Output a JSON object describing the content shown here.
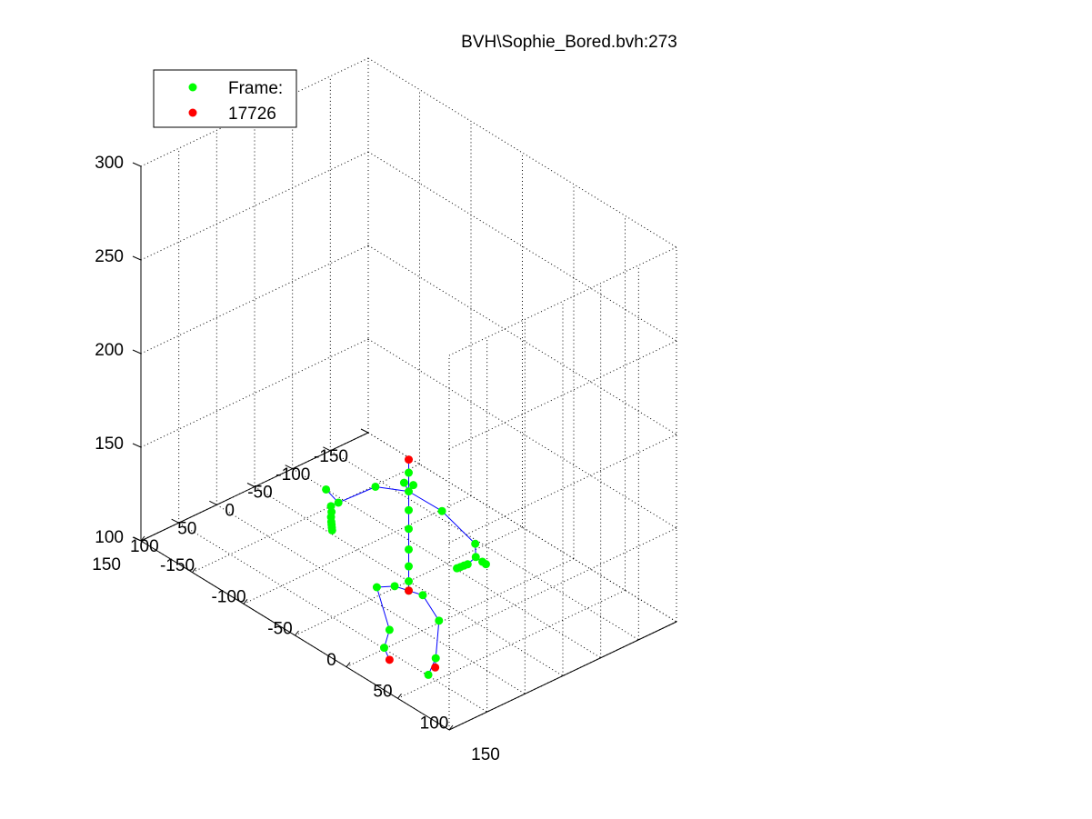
{
  "chart_data": {
    "type": "scatter",
    "subtype": "3d-skeleton",
    "title": "BVH\\Sophie_Bored.bvh:273",
    "xlabel": "",
    "ylabel": "",
    "zlabel": "",
    "xlim": [
      -150,
      150
    ],
    "ylim": [
      -150,
      150
    ],
    "zlim": [
      100,
      300
    ],
    "x_ticks": [
      -150,
      -100,
      -50,
      0,
      50,
      100,
      150
    ],
    "y_ticks": [
      -150,
      -100,
      -50,
      0,
      50,
      100,
      150
    ],
    "z_ticks": [
      100,
      150,
      200,
      250,
      300
    ],
    "grid": true,
    "legend": {
      "position": "top-left",
      "entries": [
        {
          "label": "Frame:",
          "color": "#00ff00"
        },
        {
          "label": "17726",
          "color": "#ff0000"
        }
      ]
    },
    "colors": {
      "joint": "#00ff00",
      "end_site": "#ff0000",
      "bone": "#0000ff"
    },
    "joints": [
      {
        "id": 0,
        "x": 0,
        "y": 0,
        "z": 95
      },
      {
        "id": 1,
        "x": -10,
        "y": 5,
        "z": 95
      },
      {
        "id": 2,
        "x": -20,
        "y": 15,
        "z": 93
      },
      {
        "id": 3,
        "x": -15,
        "y": 5,
        "z": 70
      },
      {
        "id": 4,
        "x": -18,
        "y": 8,
        "z": 60
      },
      {
        "id": 5,
        "x": 10,
        "y": -5,
        "z": 95
      },
      {
        "id": 6,
        "x": 28,
        "y": -2,
        "z": 88
      },
      {
        "id": 7,
        "x": 30,
        "y": 5,
        "z": 70
      },
      {
        "id": 8,
        "x": 25,
        "y": 8,
        "z": 60
      },
      {
        "id": 9,
        "x": 0,
        "y": 0,
        "z": 100
      },
      {
        "id": 10,
        "x": 0,
        "y": 0,
        "z": 108
      },
      {
        "id": 11,
        "x": 0,
        "y": 0,
        "z": 117
      },
      {
        "id": 12,
        "x": 0,
        "y": 0,
        "z": 128
      },
      {
        "id": 13,
        "x": 0,
        "y": 0,
        "z": 138
      },
      {
        "id": 14,
        "x": 0,
        "y": 0,
        "z": 148
      },
      {
        "id": 15,
        "x": -3,
        "y": 2,
        "z": 152
      },
      {
        "id": 16,
        "x": 3,
        "y": -2,
        "z": 152
      },
      {
        "id": 17,
        "x": 0,
        "y": 0,
        "z": 158
      },
      {
        "id": 18,
        "x": -25,
        "y": 10,
        "z": 144
      },
      {
        "id": 19,
        "x": -50,
        "y": 25,
        "z": 130
      },
      {
        "id": 20,
        "x": -55,
        "y": 28,
        "z": 127
      },
      {
        "id": 21,
        "x": -53,
        "y": 30,
        "z": 125
      },
      {
        "id": 22,
        "x": -52,
        "y": 32,
        "z": 123
      },
      {
        "id": 23,
        "x": -51,
        "y": 33,
        "z": 121
      },
      {
        "id": 24,
        "x": -50,
        "y": 34,
        "z": 120
      },
      {
        "id": 25,
        "x": -49,
        "y": 35,
        "z": 119
      },
      {
        "id": 26,
        "x": -48,
        "y": 36,
        "z": 118
      },
      {
        "id": 27,
        "x": -62,
        "y": 25,
        "z": 133
      },
      {
        "id": 28,
        "x": 25,
        "y": -10,
        "z": 144
      },
      {
        "id": 29,
        "x": 50,
        "y": -20,
        "z": 133
      },
      {
        "id": 30,
        "x": 52,
        "y": -18,
        "z": 127
      },
      {
        "id": 31,
        "x": 50,
        "y": -10,
        "z": 124
      },
      {
        "id": 32,
        "x": 48,
        "y": -8,
        "z": 123
      },
      {
        "id": 33,
        "x": 46,
        "y": -6,
        "z": 122
      },
      {
        "id": 34,
        "x": 44,
        "y": -4,
        "z": 121
      },
      {
        "id": 35,
        "x": 54,
        "y": -24,
        "z": 124
      },
      {
        "id": 36,
        "x": 56,
        "y": -26,
        "z": 123
      }
    ],
    "end_sites": [
      {
        "id": 37,
        "x": -15,
        "y": 5,
        "z": 54
      },
      {
        "id": 38,
        "x": 28,
        "y": 3,
        "z": 64
      },
      {
        "id": 39,
        "x": 0,
        "y": 0,
        "z": 95
      },
      {
        "id": 40,
        "x": 0,
        "y": 0,
        "z": 165
      }
    ],
    "bones": [
      [
        0,
        1
      ],
      [
        1,
        2
      ],
      [
        2,
        3
      ],
      [
        3,
        4
      ],
      [
        4,
        37
      ],
      [
        0,
        5
      ],
      [
        5,
        6
      ],
      [
        6,
        7
      ],
      [
        7,
        38
      ],
      [
        7,
        8
      ],
      [
        0,
        9
      ],
      [
        9,
        10
      ],
      [
        10,
        11
      ],
      [
        11,
        12
      ],
      [
        12,
        13
      ],
      [
        13,
        14
      ],
      [
        14,
        15
      ],
      [
        14,
        16
      ],
      [
        14,
        17
      ],
      [
        17,
        40
      ],
      [
        14,
        18
      ],
      [
        18,
        19
      ],
      [
        19,
        20
      ],
      [
        20,
        21
      ],
      [
        21,
        22
      ],
      [
        22,
        23
      ],
      [
        23,
        24
      ],
      [
        24,
        25
      ],
      [
        25,
        26
      ],
      [
        19,
        27
      ],
      [
        14,
        28
      ],
      [
        28,
        29
      ],
      [
        29,
        30
      ],
      [
        30,
        31
      ],
      [
        31,
        32
      ],
      [
        32,
        33
      ],
      [
        33,
        34
      ],
      [
        30,
        35
      ],
      [
        35,
        36
      ]
    ]
  }
}
